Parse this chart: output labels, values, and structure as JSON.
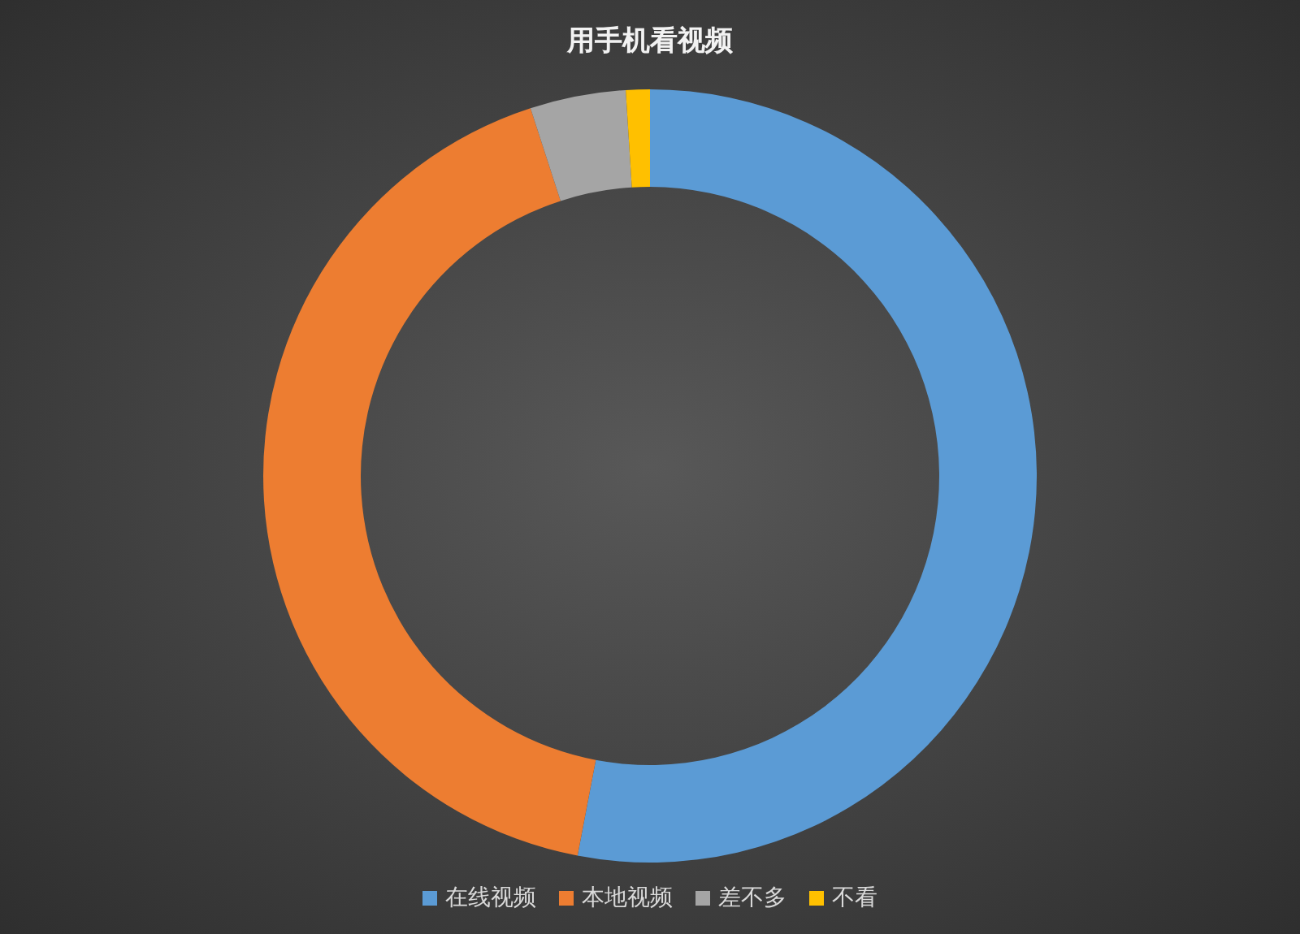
{
  "chart_data": {
    "type": "donut",
    "title": "用手机看视频",
    "categories": [
      "在线视频",
      "本地视频",
      "差不多",
      "不看"
    ],
    "values": [
      53,
      42,
      4,
      1
    ],
    "colors": [
      "#5b9bd5",
      "#ed7d31",
      "#a5a5a5",
      "#ffc000"
    ],
    "legend": "bottom"
  }
}
